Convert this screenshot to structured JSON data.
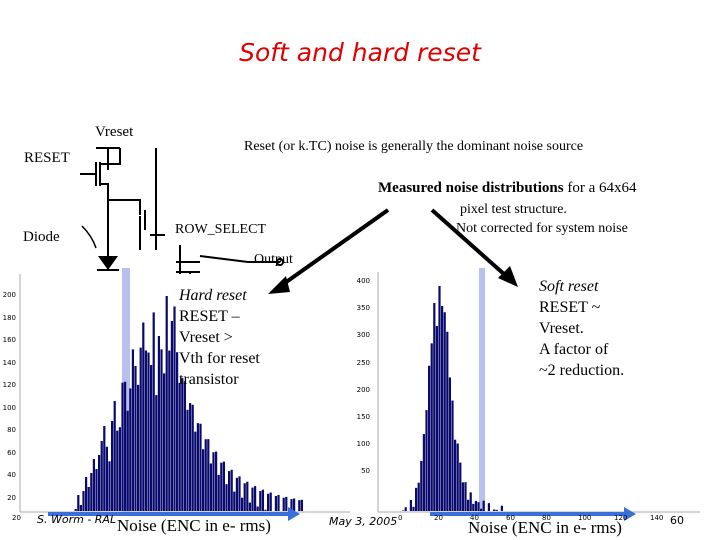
{
  "title": "Soft and hard reset",
  "circuit": {
    "vreset_label": "Vreset",
    "reset_label": "RESET",
    "diode_label": "Diode",
    "row_select_label": "ROW_SELECT",
    "output_label": "Output"
  },
  "notes": {
    "ktc_noise": "Reset (or k.TC) noise is generally the dominant noise source",
    "measured_bold": "Measured noise distributions",
    "measured_rest": " for a 64x64",
    "pixel_structure": "pixel test structure.",
    "not_corrected": "Not corrected for system noise"
  },
  "hard_reset": {
    "heading": "Hard reset",
    "lines": [
      "RESET –",
      "Vreset >",
      "Vth for reset",
      "transistor"
    ]
  },
  "soft_reset": {
    "heading": "Soft reset",
    "lines": [
      "RESET ~",
      "Vreset.",
      "A factor of",
      "~2 reduction."
    ]
  },
  "left_hist": {
    "xlabel": "Noise (ENC in e- rms)",
    "y_ticks": [
      "200",
      "180",
      "160",
      "140",
      "120",
      "100",
      "80",
      "60",
      "40",
      "20"
    ],
    "x_ticks": [
      "20"
    ]
  },
  "right_hist": {
    "xlabel": "Noise (ENC in e- rms)",
    "y_ticks": [
      "400",
      "350",
      "300",
      "250",
      "200",
      "150",
      "100",
      "50"
    ],
    "x_ticks": [
      "0",
      "20",
      "40",
      "60",
      "80",
      "100",
      "120",
      "140"
    ]
  },
  "footer": {
    "author": "S. Worm - RAL",
    "date": "May 3, 2005",
    "page": "60"
  },
  "colors": {
    "title": "#e00000",
    "histogram": "#0a0a6e",
    "arrow": "#3a6fd8",
    "highlight": "#b8c0f0"
  }
}
